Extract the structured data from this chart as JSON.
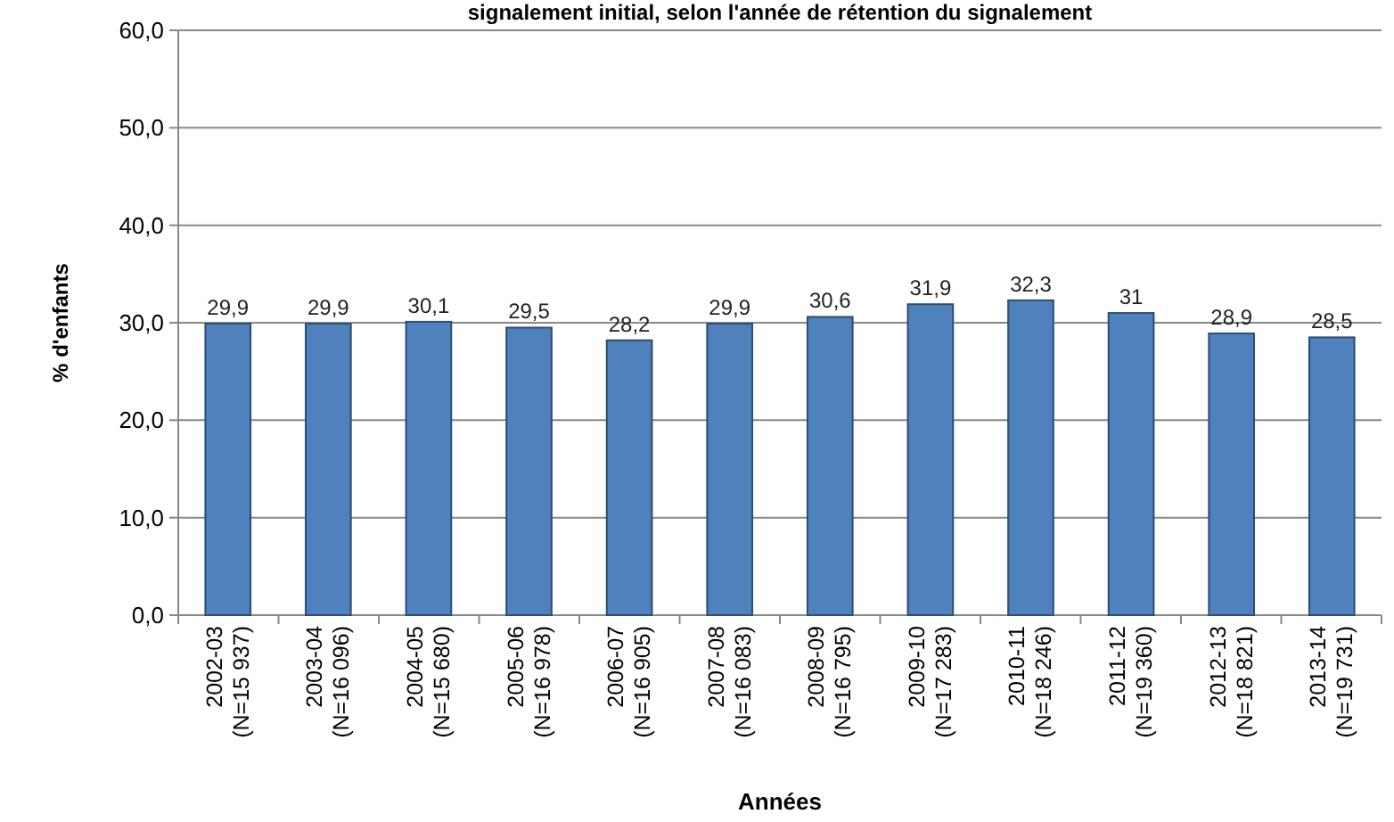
{
  "chart_data": {
    "type": "bar",
    "title": "signalement initial, selon l'année de rétention du signalement",
    "xlabel": "Années",
    "ylabel": "% d'enfants",
    "categories": [
      "2002-03\n(N=15 937)",
      "2003-04\n(N=16 096)",
      "2004-05\n(N=15 680)",
      "2005-06\n(N=16 978)",
      "2006-07\n(N=16 905)",
      "2007-08\n(N=16 083)",
      "2008-09\n(N=16 795)",
      "2009-10\n(N=17 283)",
      "2010-11\n(N=18 246)",
      "2011-12\n(N=19 360)",
      "2012-13\n(N=18 821)",
      "2013-14\n(N=19 731)"
    ],
    "values": [
      29.9,
      29.9,
      30.1,
      29.5,
      28.2,
      29.9,
      30.6,
      31.9,
      32.3,
      31,
      28.9,
      28.5
    ],
    "value_labels": [
      "29,9",
      "29,9",
      "30,1",
      "29,5",
      "28,2",
      "29,9",
      "30,6",
      "31,9",
      "32,3",
      "31",
      "28,9",
      "28,5"
    ],
    "color": "#4f81bd",
    "ylim": [
      0,
      60
    ],
    "yticks": [
      {
        "value": 0,
        "label": "0,0"
      },
      {
        "value": 10,
        "label": "10,0"
      },
      {
        "value": 20,
        "label": "20,0"
      },
      {
        "value": 30,
        "label": "30,0"
      },
      {
        "value": 40,
        "label": "40,0"
      },
      {
        "value": 50,
        "label": "50,0"
      },
      {
        "value": 60,
        "label": "60,0"
      }
    ],
    "grid": "y"
  }
}
